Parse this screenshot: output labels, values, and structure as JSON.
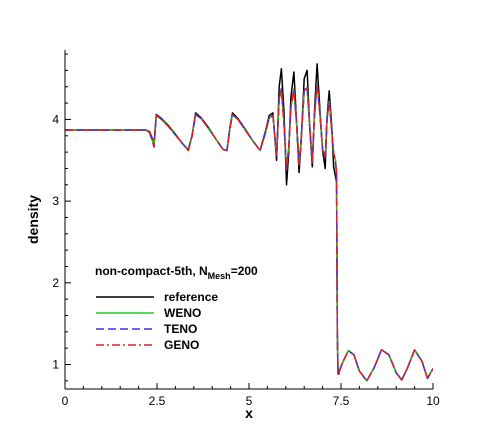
{
  "chart_data": {
    "type": "line",
    "title": "",
    "xlabel": "x",
    "ylabel": "density",
    "xlim": [
      0,
      10
    ],
    "ylim": [
      0.7,
      4.85
    ],
    "xticks": [
      0,
      2.5,
      5,
      7.5,
      10
    ],
    "xtick_labels": [
      "0",
      "2.5",
      "5",
      "7.5",
      "10"
    ],
    "yticks": [
      1,
      2,
      3,
      4
    ],
    "ytick_labels": [
      "1",
      "2",
      "3",
      "4"
    ],
    "grid": false,
    "legend": {
      "title_main": "non-compact-5th, N",
      "title_sub": "Mesh",
      "title_end": "=200",
      "placement": "center-left"
    },
    "series": [
      {
        "name": "reference",
        "color": "#000000",
        "dash": "solid",
        "x": [
          0,
          2.2,
          2.3,
          2.36,
          2.42,
          2.48,
          2.6,
          2.8,
          3.0,
          3.2,
          3.35,
          3.45,
          3.55,
          3.7,
          3.9,
          4.1,
          4.3,
          4.4,
          4.48,
          4.55,
          4.7,
          4.9,
          5.1,
          5.3,
          5.45,
          5.55,
          5.65,
          5.75,
          5.82,
          5.88,
          5.95,
          6.02,
          6.08,
          6.14,
          6.22,
          6.3,
          6.36,
          6.42,
          6.5,
          6.58,
          6.65,
          6.72,
          6.78,
          6.85,
          6.93,
          7.0,
          7.07,
          7.12,
          7.18,
          7.25,
          7.3,
          7.35,
          7.38,
          7.4,
          7.42,
          7.44,
          7.46,
          7.48,
          7.55,
          7.7,
          7.85,
          8.0,
          8.2,
          8.4,
          8.6,
          8.8,
          9.0,
          9.15,
          9.3,
          9.5,
          9.7,
          9.85,
          10.0
        ],
        "y": [
          3.87,
          3.87,
          3.85,
          3.78,
          3.7,
          4.06,
          4.02,
          3.93,
          3.82,
          3.7,
          3.63,
          3.8,
          4.08,
          4.02,
          3.9,
          3.76,
          3.63,
          3.62,
          3.9,
          4.08,
          4.01,
          3.88,
          3.74,
          3.62,
          3.86,
          4.05,
          4.08,
          3.5,
          4.4,
          4.62,
          4.1,
          3.2,
          3.6,
          4.28,
          4.58,
          3.9,
          3.35,
          3.75,
          4.5,
          4.6,
          3.9,
          3.42,
          4.1,
          4.68,
          4.1,
          3.62,
          3.4,
          4.02,
          4.35,
          3.9,
          3.42,
          3.3,
          3.23,
          1.4,
          0.88,
          0.88,
          0.92,
          0.95,
          1.03,
          1.17,
          1.12,
          0.92,
          0.8,
          0.96,
          1.18,
          1.12,
          0.9,
          0.81,
          0.95,
          1.18,
          1.04,
          0.83,
          0.95
        ]
      },
      {
        "name": "WENO",
        "color": "#22cc22",
        "dash": "solid",
        "x": [
          0,
          2.2,
          2.3,
          2.36,
          2.42,
          2.48,
          2.6,
          2.8,
          3.0,
          3.2,
          3.35,
          3.45,
          3.55,
          3.7,
          3.9,
          4.1,
          4.3,
          4.4,
          4.48,
          4.55,
          4.7,
          4.9,
          5.1,
          5.3,
          5.45,
          5.55,
          5.65,
          5.75,
          5.82,
          5.88,
          5.95,
          6.02,
          6.08,
          6.14,
          6.22,
          6.3,
          6.36,
          6.42,
          6.5,
          6.58,
          6.65,
          6.72,
          6.78,
          6.85,
          6.93,
          7.0,
          7.07,
          7.12,
          7.18,
          7.25,
          7.3,
          7.35,
          7.38,
          7.4,
          7.42,
          7.44,
          7.46,
          7.48,
          7.55,
          7.7,
          7.85,
          8.0,
          8.2,
          8.4,
          8.6,
          8.8,
          9.0,
          9.15,
          9.3,
          9.5,
          9.7,
          9.85,
          10.0
        ],
        "y": [
          3.87,
          3.87,
          3.84,
          3.76,
          3.68,
          4.05,
          4.01,
          3.92,
          3.81,
          3.7,
          3.62,
          3.79,
          4.06,
          4.01,
          3.89,
          3.76,
          3.63,
          3.62,
          3.88,
          4.06,
          4.0,
          3.87,
          3.74,
          3.62,
          3.84,
          4.02,
          4.04,
          3.56,
          4.25,
          4.36,
          3.95,
          3.4,
          3.66,
          4.15,
          4.36,
          3.92,
          3.45,
          3.78,
          4.35,
          4.38,
          3.92,
          3.48,
          4.05,
          4.44,
          4.05,
          3.63,
          3.55,
          4.0,
          4.22,
          3.85,
          3.6,
          3.5,
          3.35,
          1.35,
          0.88,
          0.88,
          0.92,
          0.95,
          1.03,
          1.17,
          1.12,
          0.92,
          0.8,
          0.96,
          1.18,
          1.12,
          0.9,
          0.81,
          0.95,
          1.18,
          1.04,
          0.83,
          0.95
        ]
      },
      {
        "name": "TENO",
        "color": "#3333ee",
        "dash": "8,4",
        "x": [
          0,
          2.2,
          2.3,
          2.36,
          2.42,
          2.48,
          2.6,
          2.8,
          3.0,
          3.2,
          3.35,
          3.45,
          3.55,
          3.7,
          3.9,
          4.1,
          4.3,
          4.4,
          4.48,
          4.55,
          4.7,
          4.9,
          5.1,
          5.3,
          5.45,
          5.55,
          5.65,
          5.75,
          5.82,
          5.88,
          5.95,
          6.02,
          6.08,
          6.14,
          6.22,
          6.3,
          6.36,
          6.42,
          6.5,
          6.58,
          6.65,
          6.72,
          6.78,
          6.85,
          6.93,
          7.0,
          7.07,
          7.12,
          7.18,
          7.25,
          7.3,
          7.35,
          7.38,
          7.4,
          7.42,
          7.44,
          7.46,
          7.48,
          7.55,
          7.7,
          7.85,
          8.0,
          8.2,
          8.4,
          8.6,
          8.8,
          9.0,
          9.15,
          9.3,
          9.5,
          9.7,
          9.85,
          10.0
        ],
        "y": [
          3.87,
          3.87,
          3.84,
          3.75,
          3.66,
          4.05,
          4.01,
          3.92,
          3.81,
          3.7,
          3.62,
          3.79,
          4.06,
          4.01,
          3.89,
          3.76,
          3.63,
          3.62,
          3.88,
          4.06,
          4.0,
          3.87,
          3.74,
          3.62,
          3.84,
          4.03,
          4.05,
          3.55,
          4.26,
          4.38,
          3.95,
          3.38,
          3.65,
          4.16,
          4.37,
          3.91,
          3.44,
          3.78,
          4.36,
          4.4,
          3.92,
          3.47,
          4.05,
          4.45,
          4.05,
          3.62,
          3.54,
          4.0,
          4.23,
          3.86,
          3.58,
          3.48,
          3.33,
          1.35,
          0.88,
          0.88,
          0.92,
          0.95,
          1.03,
          1.17,
          1.12,
          0.92,
          0.8,
          0.96,
          1.18,
          1.12,
          0.9,
          0.81,
          0.95,
          1.18,
          1.04,
          0.83,
          0.95
        ]
      },
      {
        "name": "GENO",
        "color": "#dd2222",
        "dash": "8,3,2,3",
        "x": [
          0,
          2.2,
          2.3,
          2.36,
          2.42,
          2.48,
          2.6,
          2.8,
          3.0,
          3.2,
          3.35,
          3.45,
          3.55,
          3.7,
          3.9,
          4.1,
          4.3,
          4.4,
          4.48,
          4.55,
          4.7,
          4.9,
          5.1,
          5.3,
          5.45,
          5.55,
          5.65,
          5.75,
          5.82,
          5.88,
          5.95,
          6.02,
          6.08,
          6.14,
          6.22,
          6.3,
          6.36,
          6.42,
          6.5,
          6.58,
          6.65,
          6.72,
          6.78,
          6.85,
          6.93,
          7.0,
          7.07,
          7.12,
          7.18,
          7.25,
          7.3,
          7.35,
          7.38,
          7.4,
          7.42,
          7.44,
          7.46,
          7.48,
          7.55,
          7.7,
          7.85,
          8.0,
          8.2,
          8.4,
          8.6,
          8.8,
          9.0,
          9.15,
          9.3,
          9.5,
          9.7,
          9.85,
          10.0
        ],
        "y": [
          3.87,
          3.87,
          3.84,
          3.76,
          3.67,
          4.05,
          4.01,
          3.92,
          3.81,
          3.7,
          3.62,
          3.79,
          4.06,
          4.01,
          3.89,
          3.76,
          3.63,
          3.62,
          3.88,
          4.06,
          4.0,
          3.87,
          3.74,
          3.62,
          3.84,
          4.02,
          4.05,
          3.56,
          4.26,
          4.37,
          3.95,
          3.39,
          3.65,
          4.16,
          4.37,
          3.92,
          3.45,
          3.78,
          4.35,
          4.39,
          3.92,
          3.48,
          4.05,
          4.44,
          4.05,
          3.63,
          3.55,
          4.0,
          4.22,
          3.86,
          3.59,
          3.49,
          3.34,
          1.35,
          0.88,
          0.88,
          0.92,
          0.95,
          1.03,
          1.17,
          1.12,
          0.92,
          0.8,
          0.96,
          1.18,
          1.12,
          0.9,
          0.81,
          0.95,
          1.18,
          1.04,
          0.83,
          0.95
        ]
      }
    ]
  }
}
